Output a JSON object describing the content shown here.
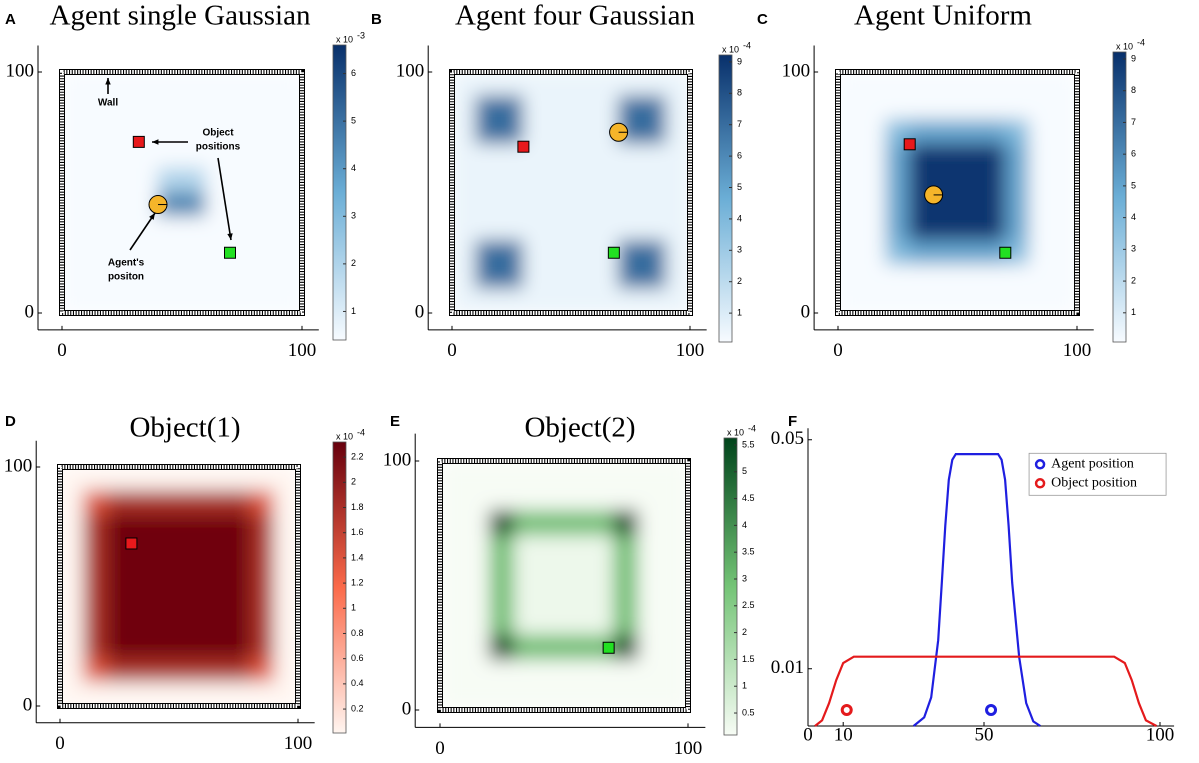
{
  "chart_data": [
    {
      "type": "heatmap",
      "label": "A",
      "title": "Agent single Gaussian",
      "x": [
        5,
        15,
        25,
        35,
        45,
        55,
        65,
        75,
        85,
        95
      ],
      "y": [
        95,
        85,
        75,
        65,
        55,
        45,
        35,
        25,
        15,
        5
      ],
      "z": [
        [
          0,
          0,
          0,
          0,
          0,
          0,
          0,
          0,
          0,
          0
        ],
        [
          0,
          0,
          0,
          0,
          0,
          0,
          0,
          0,
          0,
          0
        ],
        [
          0,
          0,
          0,
          0,
          0,
          0,
          0,
          0,
          0,
          0
        ],
        [
          0,
          0,
          0,
          0,
          0,
          0,
          0,
          0,
          0,
          0
        ],
        [
          0,
          0,
          0,
          0,
          2,
          2,
          0,
          0,
          0,
          0
        ],
        [
          0,
          0,
          0,
          0,
          4.5,
          4.5,
          0,
          0,
          0,
          0
        ],
        [
          0,
          0,
          0,
          0,
          0,
          0,
          0,
          0,
          0,
          0
        ],
        [
          0,
          0,
          0,
          0,
          0,
          0,
          0,
          0,
          0,
          0
        ],
        [
          0,
          0,
          0,
          0,
          0,
          0,
          0,
          0,
          0,
          0
        ],
        [
          0,
          0,
          0,
          0,
          0,
          0,
          0,
          0,
          0,
          0
        ]
      ],
      "cmap": [
        "#f7fbff",
        "#6baed6",
        "#08306b"
      ],
      "clim": [
        0.4,
        6.6
      ],
      "cticks": [
        1,
        2,
        3,
        4,
        5,
        6
      ],
      "colorbar_base": "x 10",
      "colorbar_exp": "-3",
      "xlim": [
        -10,
        107
      ],
      "ylim": [
        -7,
        111
      ],
      "xticks": [
        0,
        100
      ],
      "yticks": [
        0,
        100
      ],
      "agent": {
        "x": 40,
        "y": 45,
        "color": "#f5b52a"
      },
      "objects": [
        {
          "x": 32,
          "y": 71,
          "color": "#e8191c"
        },
        {
          "x": 70,
          "y": 25,
          "color": "#22e022"
        }
      ],
      "annotations": [
        {
          "text": [
            "Wall"
          ]
        },
        {
          "text": [
            "Object",
            "positions"
          ]
        },
        {
          "text": [
            "Agent's",
            "positon"
          ]
        }
      ]
    },
    {
      "type": "heatmap",
      "label": "B",
      "title": "Agent four Gaussian",
      "x": [
        5,
        15,
        25,
        35,
        45,
        55,
        65,
        75,
        85,
        95
      ],
      "y": [
        95,
        85,
        75,
        65,
        55,
        45,
        35,
        25,
        15,
        5
      ],
      "z": [
        [
          0.5,
          0.5,
          0.5,
          0.5,
          0.5,
          0.5,
          0.5,
          0.5,
          0.5,
          0.5
        ],
        [
          0.5,
          7,
          7,
          0.5,
          0.5,
          0.5,
          0.5,
          7,
          7,
          0.5
        ],
        [
          0.5,
          7,
          7,
          0.5,
          0.5,
          0.5,
          0.5,
          7,
          7,
          0.5
        ],
        [
          0.5,
          0.5,
          0.5,
          0.5,
          0.5,
          0.5,
          0.5,
          0.5,
          0.5,
          0.5
        ],
        [
          0.5,
          0.5,
          0.5,
          0.5,
          0.5,
          0.5,
          0.5,
          0.5,
          0.5,
          0.5
        ],
        [
          0.5,
          0.5,
          0.5,
          0.5,
          0.5,
          0.5,
          0.5,
          0.5,
          0.5,
          0.5
        ],
        [
          0.5,
          0.5,
          0.5,
          0.5,
          0.5,
          0.5,
          0.5,
          0.5,
          0.5,
          0.5
        ],
        [
          0.5,
          7,
          7,
          0.5,
          0.5,
          0.5,
          0.5,
          7,
          7,
          0.5
        ],
        [
          0.5,
          7,
          7,
          0.5,
          0.5,
          0.5,
          0.5,
          7,
          7,
          0.5
        ],
        [
          0.5,
          0.5,
          0.5,
          0.5,
          0.5,
          0.5,
          0.5,
          0.5,
          0.5,
          0.5
        ]
      ],
      "cmap": [
        "#f7fbff",
        "#6baed6",
        "#08306b"
      ],
      "clim": [
        0.08,
        9.22
      ],
      "cticks": [
        1,
        2,
        3,
        4,
        5,
        6,
        7,
        8,
        9
      ],
      "colorbar_base": "x 10",
      "colorbar_exp": "-4",
      "xlim": [
        -10,
        107
      ],
      "ylim": [
        -7,
        111
      ],
      "xticks": [
        0,
        100
      ],
      "yticks": [
        0,
        100
      ],
      "agent": {
        "x": 70,
        "y": 75,
        "color": "#f5b52a"
      },
      "objects": [
        {
          "x": 30,
          "y": 69,
          "color": "#e8191c"
        },
        {
          "x": 68,
          "y": 25,
          "color": "#22e022"
        }
      ]
    },
    {
      "type": "heatmap",
      "label": "C",
      "title": "Agent Uniform",
      "x": [
        5,
        15,
        25,
        35,
        45,
        55,
        65,
        75,
        85,
        95
      ],
      "y": [
        95,
        85,
        75,
        65,
        55,
        45,
        35,
        25,
        15,
        5
      ],
      "z": [
        [
          0,
          0,
          0,
          0,
          0,
          0,
          0,
          0,
          0,
          0
        ],
        [
          0,
          0,
          0,
          0,
          0,
          0,
          0,
          0,
          0,
          0
        ],
        [
          0,
          0,
          4,
          5,
          5,
          5,
          5,
          4,
          0,
          0
        ],
        [
          0,
          0,
          5,
          9,
          9,
          9,
          9,
          5,
          0,
          0
        ],
        [
          0,
          0,
          5,
          9,
          9,
          9,
          9,
          5,
          0,
          0
        ],
        [
          0,
          0,
          5,
          9,
          9,
          9,
          9,
          5,
          0,
          0
        ],
        [
          0,
          0,
          5,
          9,
          9,
          9,
          9,
          5,
          0,
          0
        ],
        [
          0,
          0,
          4,
          5,
          5,
          5,
          5,
          4,
          0,
          0
        ],
        [
          0,
          0,
          0,
          0,
          0,
          0,
          0,
          0,
          0,
          0
        ],
        [
          0,
          0,
          0,
          0,
          0,
          0,
          0,
          0,
          0,
          0
        ]
      ],
      "cmap": [
        "#f7fbff",
        "#6baed6",
        "#08306b"
      ],
      "clim": [
        0.08,
        9.22
      ],
      "cticks": [
        1,
        2,
        3,
        4,
        5,
        6,
        7,
        8,
        9
      ],
      "colorbar_base": "x 10",
      "colorbar_exp": "-4",
      "xlim": [
        -10,
        107
      ],
      "ylim": [
        -7,
        111
      ],
      "xticks": [
        0,
        100
      ],
      "yticks": [
        0,
        100
      ],
      "agent": {
        "x": 40,
        "y": 49,
        "color": "#f5b52a"
      },
      "objects": [
        {
          "x": 30,
          "y": 70,
          "color": "#e8191c"
        },
        {
          "x": 70,
          "y": 25,
          "color": "#22e022"
        }
      ]
    },
    {
      "type": "heatmap",
      "label": "D",
      "title": "Object(1)",
      "x": [
        5,
        15,
        25,
        35,
        45,
        55,
        65,
        75,
        85,
        95
      ],
      "y": [
        95,
        85,
        75,
        65,
        55,
        45,
        35,
        25,
        15,
        5
      ],
      "z": [
        [
          0,
          0,
          0,
          0,
          0,
          0,
          0,
          0,
          0,
          0
        ],
        [
          0,
          1.4,
          1.8,
          1.8,
          1.8,
          1.8,
          1.8,
          1.8,
          1.4,
          0
        ],
        [
          0,
          1.8,
          2.25,
          2.25,
          2.25,
          2.25,
          2.25,
          2.25,
          1.8,
          0
        ],
        [
          0,
          1.8,
          2.25,
          2.25,
          2.25,
          2.25,
          2.25,
          2.25,
          1.8,
          0
        ],
        [
          0,
          1.8,
          2.25,
          2.25,
          2.25,
          2.25,
          2.25,
          2.25,
          1.8,
          0
        ],
        [
          0,
          1.8,
          2.25,
          2.25,
          2.25,
          2.25,
          2.25,
          2.25,
          1.8,
          0
        ],
        [
          0,
          1.8,
          2.25,
          2.25,
          2.25,
          2.25,
          2.25,
          2.25,
          1.8,
          0
        ],
        [
          0,
          1.8,
          2.25,
          2.25,
          2.25,
          2.25,
          2.25,
          2.25,
          1.8,
          0
        ],
        [
          0,
          1.4,
          1.8,
          1.8,
          1.8,
          1.8,
          1.8,
          1.8,
          1.4,
          0
        ],
        [
          0,
          0,
          0,
          0,
          0,
          0,
          0,
          0,
          0,
          0
        ]
      ],
      "cmap": [
        "#fff5f0",
        "#fb6a4a",
        "#67000d"
      ],
      "clim": [
        0.01,
        2.32
      ],
      "cticks": [
        0.2,
        0.4,
        0.6,
        0.8,
        1,
        1.2,
        1.4,
        1.6,
        1.8,
        2,
        2.2
      ],
      "colorbar_base": "x 10",
      "colorbar_exp": "-4",
      "xlim": [
        -10,
        107
      ],
      "ylim": [
        -7,
        111
      ],
      "xticks": [
        0,
        100
      ],
      "yticks": [
        0,
        100
      ],
      "objects": [
        {
          "x": 30,
          "y": 68,
          "color": "#e8191c"
        }
      ]
    },
    {
      "type": "heatmap",
      "label": "E",
      "title": "Object(2)",
      "x": [
        5,
        15,
        25,
        35,
        45,
        55,
        65,
        75,
        85,
        95
      ],
      "y": [
        95,
        85,
        75,
        65,
        55,
        45,
        35,
        25,
        15,
        5
      ],
      "z": [
        [
          0,
          0,
          0,
          0,
          0,
          0,
          0,
          0,
          0,
          0
        ],
        [
          0,
          0,
          0,
          0,
          0,
          0,
          0,
          0,
          0,
          0
        ],
        [
          0,
          0,
          5.5,
          3,
          3,
          3,
          3,
          5.5,
          0,
          0
        ],
        [
          0,
          0,
          3,
          0.3,
          0.3,
          0.3,
          0.3,
          3,
          0,
          0
        ],
        [
          0,
          0,
          3,
          0.3,
          0.3,
          0.3,
          0.3,
          3,
          0,
          0
        ],
        [
          0,
          0,
          3,
          0.3,
          0.3,
          0.3,
          0.3,
          3,
          0,
          0
        ],
        [
          0,
          0,
          3,
          0.3,
          0.3,
          0.3,
          0.3,
          3,
          0,
          0
        ],
        [
          0,
          0,
          5.5,
          3,
          3,
          3,
          3,
          5.5,
          0,
          0
        ],
        [
          0,
          0,
          0,
          0,
          0,
          0,
          0,
          0,
          0,
          0
        ],
        [
          0,
          0,
          0,
          0,
          0,
          0,
          0,
          0,
          0,
          0
        ]
      ],
      "cmap": [
        "#f7fcf5",
        "#74c476",
        "#00441b"
      ],
      "clim": [
        0.09,
        5.63
      ],
      "cticks": [
        0.5,
        1,
        1.5,
        2,
        2.5,
        3,
        3.5,
        4,
        4.5,
        5,
        5.5
      ],
      "colorbar_base": "x 10",
      "colorbar_exp": "-4",
      "xlim": [
        -10,
        107
      ],
      "ylim": [
        -7,
        111
      ],
      "xticks": [
        0,
        100
      ],
      "yticks": [
        0,
        100
      ],
      "objects": [
        {
          "x": 68,
          "y": 25,
          "color": "#22e022"
        }
      ]
    },
    {
      "type": "line",
      "label": "F",
      "xlim": [
        0,
        104
      ],
      "ylim": [
        0,
        0.052
      ],
      "xticks": [
        0,
        10,
        50,
        100
      ],
      "yticks": [
        0.01,
        0.05
      ],
      "curves": [
        {
          "color": "#1f1fe0",
          "x": [
            30,
            33,
            35,
            37,
            38,
            39,
            40,
            41,
            42,
            54,
            55,
            56,
            57,
            58,
            60,
            62,
            64,
            66
          ],
          "values": [
            0,
            0.0015,
            0.005,
            0.015,
            0.025,
            0.035,
            0.043,
            0.0465,
            0.0475,
            0.0475,
            0.0465,
            0.043,
            0.035,
            0.025,
            0.012,
            0.004,
            0.0008,
            0
          ]
        },
        {
          "color": "#e41a1c",
          "x": [
            2,
            4,
            6,
            8,
            10,
            13,
            87,
            90,
            92,
            94,
            96,
            99
          ],
          "values": [
            0,
            0.001,
            0.004,
            0.008,
            0.011,
            0.0121,
            0.0121,
            0.011,
            0.008,
            0.004,
            0.001,
            0
          ]
        }
      ],
      "series": [
        {
          "name": "Agent position",
          "color": "#1f1fe0",
          "x": [
            52
          ],
          "values": [
            0.0028
          ]
        },
        {
          "name": "Object position",
          "color": "#e41a1c",
          "x": [
            11
          ],
          "values": [
            0.0028
          ]
        }
      ],
      "legend": "upper right"
    }
  ]
}
